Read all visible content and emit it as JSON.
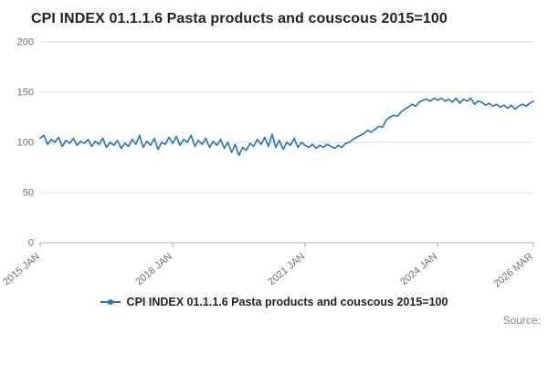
{
  "title": "CPI INDEX 01.1.1.6 Pasta products and couscous 2015=100",
  "legend": {
    "label": "CPI INDEX 01.1.1.6 Pasta products and couscous 2015=100"
  },
  "source_label": "Source:",
  "colors": {
    "line": "#2073bc",
    "grid": "#d9d9d9",
    "axis": "#b0b0b0",
    "tick_text": "#707070"
  },
  "chart_data": {
    "type": "line",
    "title": "CPI INDEX 01.1.1.6 Pasta products and couscous 2015=100",
    "xlabel": "",
    "ylabel": "",
    "frequency": "monthly",
    "x_start": "2015 JAN",
    "x_end": "2026 MAR",
    "ylim": [
      0,
      200
    ],
    "y_ticks": [
      0,
      50,
      100,
      150,
      200
    ],
    "grid": true,
    "legend_position": "bottom",
    "x_tick_labels": [
      "2015 JAN",
      "2018 JAN",
      "2021 JAN",
      "2024 JAN",
      "2026 MAR"
    ],
    "x_tick_indices": [
      0,
      36,
      72,
      108,
      134
    ],
    "values": [
      104,
      107,
      98,
      103,
      100,
      105,
      96,
      102,
      99,
      104,
      97,
      101,
      99,
      103,
      96,
      101,
      98,
      104,
      95,
      100,
      97,
      102,
      94,
      99,
      96,
      103,
      98,
      107,
      95,
      101,
      97,
      104,
      93,
      100,
      98,
      105,
      99,
      106,
      97,
      103,
      100,
      107,
      96,
      102,
      98,
      104,
      95,
      101,
      97,
      103,
      94,
      100,
      90,
      98,
      87,
      95,
      92,
      99,
      96,
      103,
      98,
      105,
      96,
      108,
      95,
      102,
      93,
      100,
      97,
      104,
      95,
      100,
      97,
      95,
      98,
      94,
      97,
      95,
      98,
      96,
      94,
      97,
      95,
      99,
      100,
      103,
      105,
      107,
      109,
      112,
      110,
      113,
      116,
      115,
      122,
      125,
      127,
      126,
      130,
      133,
      135,
      138,
      136,
      140,
      142,
      143,
      141,
      144,
      142,
      144,
      141,
      143,
      140,
      144,
      139,
      143,
      141,
      144,
      138,
      141,
      140,
      137,
      139,
      136,
      138,
      135,
      137,
      134,
      137,
      133,
      136,
      138,
      136,
      139,
      141
    ]
  }
}
